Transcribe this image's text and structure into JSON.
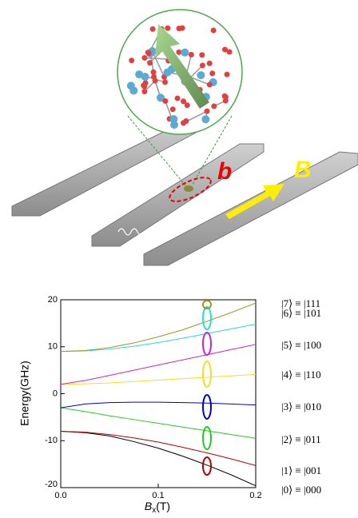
{
  "illustration": {
    "labels": [
      "b",
      "B"
    ]
  },
  "chart_data": {
    "type": "line",
    "ylabel": "Energy(GHz)",
    "xlabel": {
      "symbol": "B",
      "subscript": "x",
      "unit": "(T)"
    },
    "x": [
      0,
      0.025,
      0.05,
      0.075,
      0.1,
      0.125,
      0.15,
      0.175,
      0.2
    ],
    "xlim": [
      0,
      0.2
    ],
    "xticks": [
      {
        "value": 0,
        "label": "0.0"
      },
      0.1,
      0.2
    ],
    "ylim": [
      -20,
      20
    ],
    "yticks": [
      -20,
      -10,
      0,
      10,
      20
    ],
    "series": [
      {
        "name": "|0⟩ ≡ |000",
        "color": "#000000",
        "values": [
          -8,
          -8.3,
          -9,
          -10.2,
          -11.6,
          -13.3,
          -15.2,
          -17.3,
          -19.6
        ]
      },
      {
        "name": "|1⟩ ≡ |001",
        "color": "#b00000",
        "values": [
          -8,
          -8.2,
          -8.7,
          -9.4,
          -10.3,
          -11.4,
          -12.6,
          -13.9,
          -15.3
        ]
      },
      {
        "name": "|2⟩ ≡ |011",
        "color": "#22cc22",
        "values": [
          -3,
          -3.8,
          -4.7,
          -5.5,
          -6.3,
          -7.1,
          -7.9,
          -8.7,
          -9.5
        ]
      },
      {
        "name": "|3⟩ ≡ |010",
        "color": "#0000cc",
        "values": [
          -3,
          -2.2,
          -1.9,
          -1.8,
          -1.8,
          -1.9,
          -2.0,
          -2.2,
          -2.4
        ]
      },
      {
        "name": "|4⟩ ≡ |110",
        "color": "#f0e020",
        "values": [
          2,
          2.1,
          2.3,
          2.6,
          2.9,
          3.2,
          3.5,
          3.8,
          4.1
        ]
      },
      {
        "name": "|5⟩ ≡ |100",
        "color": "#cc22cc",
        "values": [
          2,
          2.8,
          3.9,
          5.0,
          6.1,
          7.2,
          8.3,
          9.4,
          10.5
        ]
      },
      {
        "name": "|6⟩ ≡ |101",
        "color": "#22dddd",
        "values": [
          9,
          9.1,
          9.5,
          10.1,
          10.9,
          11.8,
          12.8,
          13.8,
          14.8
        ]
      },
      {
        "name": "|7⟩ ≡ |111",
        "color": "#999922",
        "values": [
          9,
          9.2,
          9.8,
          10.8,
          12.1,
          13.6,
          15.4,
          17.3,
          19.3
        ]
      }
    ]
  }
}
